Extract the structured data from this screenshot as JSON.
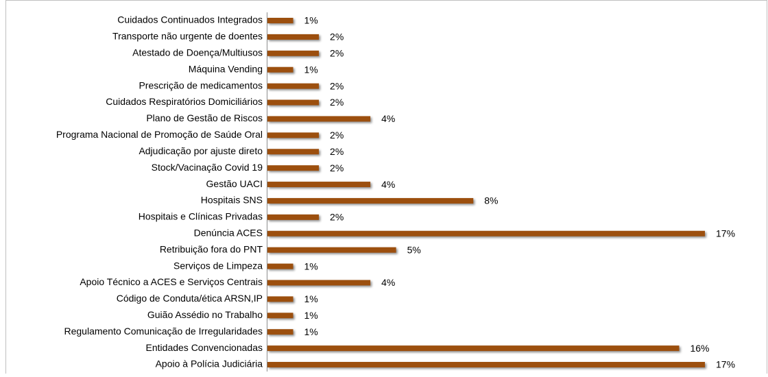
{
  "chart_data": {
    "type": "bar",
    "orientation": "horizontal",
    "color": "#9c4f0e",
    "categories": [
      "Cuidados Continuados Integrados",
      "Transporte não urgente de doentes",
      "Atestado de Doença/Multiusos",
      "Máquina Vending",
      "Prescrição de medicamentos",
      "Cuidados Respiratórios Domiciliários",
      "Plano de Gestão de Riscos",
      "Programa Nacional de Promoção de Saúde Oral",
      "Adjudicação por ajuste direto",
      "Stock/Vacinação Covid 19",
      "Gestão UACI",
      "Hospitais SNS",
      "Hospitais e Clínicas Privadas",
      "Denúncia ACES",
      "Retribuição fora do PNT",
      "Serviços de Limpeza",
      "Apoio Técnico a ACES e Serviços Centrais",
      "Código de Conduta/ética  ARSN,IP",
      "Guião Assédio no Trabalho",
      "Regulamento Comunicação de Irregularidades",
      "Entidades Convencionadas",
      "Apoio à Polícia Judiciária"
    ],
    "values": [
      1,
      2,
      2,
      1,
      2,
      2,
      4,
      2,
      2,
      2,
      4,
      8,
      2,
      17,
      5,
      1,
      4,
      1,
      1,
      1,
      16,
      17
    ],
    "value_labels": [
      "1%",
      "2%",
      "2%",
      "1%",
      "2%",
      "2%",
      "4%",
      "2%",
      "2%",
      "2%",
      "4%",
      "8%",
      "2%",
      "17%",
      "5%",
      "1%",
      "4%",
      "1%",
      "1%",
      "1%",
      "16%",
      "17%"
    ]
  }
}
